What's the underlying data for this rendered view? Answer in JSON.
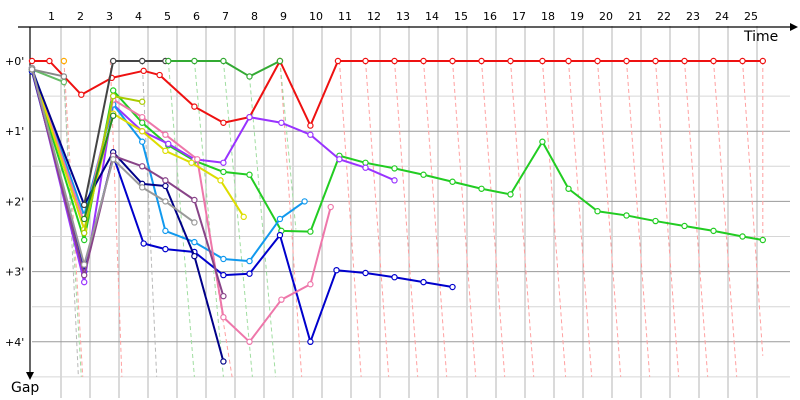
{
  "chart_data": {
    "type": "line",
    "title": "",
    "xlabel": "Time",
    "ylabel": "Gap",
    "x_ticks": [
      "1",
      "2",
      "3",
      "4",
      "5",
      "6",
      "7",
      "8",
      "9",
      "10",
      "11",
      "12",
      "13",
      "14",
      "15",
      "16",
      "17",
      "18",
      "19",
      "20",
      "21",
      "22",
      "23",
      "24",
      "25"
    ],
    "y_ticks": [
      "+0'",
      "+1'",
      "+2'",
      "+3'",
      "+4'"
    ],
    "xlim": [
      0.05,
      25.2
    ],
    "ylim": [
      0,
      4.5
    ],
    "grid": true,
    "series": [
      {
        "color": "#ee1111",
        "points": [
          [
            0,
            0
          ],
          [
            0.6,
            0
          ],
          [
            1.7,
            0.48
          ],
          [
            2.75,
            0.24
          ],
          [
            3.85,
            0.14
          ],
          [
            4.4,
            0.2
          ],
          [
            5.6,
            0.65
          ],
          [
            6.6,
            0.88
          ],
          [
            7.5,
            0.8
          ],
          [
            8.55,
            0
          ],
          [
            9.6,
            0.92
          ],
          [
            10.55,
            0
          ],
          [
            11.5,
            0
          ],
          [
            12.5,
            0
          ],
          [
            13.5,
            0
          ],
          [
            14.5,
            0
          ],
          [
            15.5,
            0
          ],
          [
            16.5,
            0
          ],
          [
            17.6,
            0
          ],
          [
            18.5,
            0
          ],
          [
            19.5,
            0
          ],
          [
            20.5,
            0
          ],
          [
            21.5,
            0
          ],
          [
            22.5,
            0
          ],
          [
            23.5,
            0
          ],
          [
            24.5,
            0
          ],
          [
            25.2,
            0
          ]
        ]
      },
      {
        "color": "#22cc22",
        "points": [
          [
            0,
            0.15
          ],
          [
            1.8,
            2.55
          ],
          [
            2.8,
            0.42
          ],
          [
            3.8,
            0.88
          ],
          [
            4.7,
            1.2
          ],
          [
            5.6,
            1.42
          ],
          [
            6.6,
            1.58
          ],
          [
            7.5,
            1.62
          ],
          [
            8.6,
            2.42
          ],
          [
            9.6,
            2.43
          ],
          [
            10.6,
            1.35
          ],
          [
            11.5,
            1.45
          ],
          [
            12.5,
            1.53
          ],
          [
            13.5,
            1.62
          ],
          [
            14.5,
            1.72
          ],
          [
            15.5,
            1.82
          ],
          [
            16.5,
            1.9
          ],
          [
            17.6,
            1.15
          ],
          [
            18.5,
            1.82
          ],
          [
            19.5,
            2.14
          ],
          [
            20.5,
            2.2
          ],
          [
            21.5,
            2.28
          ],
          [
            22.5,
            2.35
          ],
          [
            23.5,
            2.42
          ],
          [
            24.5,
            2.5
          ],
          [
            25.2,
            2.55
          ]
        ]
      },
      {
        "color": "#0000cc",
        "points": [
          [
            0,
            0.15
          ],
          [
            1.8,
            3.0
          ],
          [
            2.8,
            1.35
          ],
          [
            3.85,
            2.6
          ],
          [
            4.6,
            2.68
          ],
          [
            5.6,
            2.72
          ],
          [
            6.6,
            3.05
          ],
          [
            7.5,
            3.03
          ],
          [
            8.55,
            2.48
          ],
          [
            9.6,
            4.0
          ],
          [
            10.5,
            2.98
          ],
          [
            11.5,
            3.02
          ],
          [
            12.5,
            3.08
          ],
          [
            13.5,
            3.15
          ],
          [
            14.5,
            3.22
          ]
        ]
      },
      {
        "color": "#9933ff",
        "points": [
          [
            0,
            0.1
          ],
          [
            1.8,
            3.15
          ],
          [
            2.8,
            0.62
          ],
          [
            3.8,
            1.0
          ],
          [
            4.7,
            1.18
          ],
          [
            5.6,
            1.4
          ],
          [
            6.6,
            1.45
          ],
          [
            7.5,
            0.8
          ],
          [
            8.6,
            0.88
          ],
          [
            9.6,
            1.05
          ],
          [
            10.6,
            1.4
          ],
          [
            11.5,
            1.52
          ],
          [
            12.5,
            1.7
          ]
        ]
      },
      {
        "color": "#1199ee",
        "points": [
          [
            0,
            0.1
          ],
          [
            1.8,
            2.2
          ],
          [
            2.8,
            0.62
          ],
          [
            3.8,
            1.15
          ],
          [
            4.6,
            2.42
          ],
          [
            5.6,
            2.58
          ],
          [
            6.6,
            2.82
          ],
          [
            7.5,
            2.85
          ],
          [
            8.55,
            2.25
          ],
          [
            9.4,
            2.0
          ]
        ]
      },
      {
        "color": "#ee77aa",
        "points": [
          [
            0,
            0.1
          ],
          [
            1.8,
            2.3
          ],
          [
            2.8,
            0.55
          ],
          [
            3.8,
            0.8
          ],
          [
            4.6,
            1.05
          ],
          [
            5.7,
            1.4
          ],
          [
            6.6,
            3.65
          ],
          [
            7.5,
            4.0
          ],
          [
            8.6,
            3.4
          ],
          [
            9.6,
            3.18
          ],
          [
            10.3,
            2.08
          ]
        ]
      },
      {
        "color": "#dddd00",
        "points": [
          [
            0,
            0.12
          ],
          [
            1.8,
            2.4
          ],
          [
            2.8,
            0.75
          ],
          [
            3.8,
            1.0
          ],
          [
            4.6,
            1.28
          ],
          [
            5.5,
            1.45
          ],
          [
            6.5,
            1.7
          ],
          [
            7.3,
            2.22
          ]
        ]
      },
      {
        "color": "#000088",
        "points": [
          [
            0,
            0.12
          ],
          [
            1.8,
            2.05
          ],
          [
            2.8,
            1.3
          ],
          [
            3.8,
            1.75
          ],
          [
            4.6,
            1.78
          ],
          [
            5.6,
            2.78
          ],
          [
            6.6,
            4.28
          ]
        ]
      },
      {
        "color": "#884488",
        "points": [
          [
            0,
            0.12
          ],
          [
            1.8,
            3.05
          ],
          [
            2.8,
            1.35
          ],
          [
            3.8,
            1.5
          ],
          [
            4.6,
            1.7
          ],
          [
            5.6,
            1.98
          ],
          [
            6.6,
            3.35
          ]
        ]
      },
      {
        "color": "#999999",
        "points": [
          [
            0,
            0.1
          ],
          [
            1.8,
            2.9
          ],
          [
            2.8,
            1.4
          ],
          [
            3.8,
            1.8
          ],
          [
            4.6,
            2.0
          ],
          [
            5.6,
            2.3
          ]
        ]
      },
      {
        "color": "#66bb66",
        "points": [
          [
            0,
            0.12
          ],
          [
            1.1,
            0.3
          ]
        ]
      },
      {
        "color": "#888888",
        "points": [
          [
            0,
            0.12
          ],
          [
            1.1,
            0.22
          ]
        ]
      },
      {
        "color": "#444444",
        "points": [
          [
            1.8,
            2.05
          ],
          [
            2.8,
            0
          ],
          [
            3.8,
            0
          ],
          [
            4.6,
            0
          ]
        ]
      },
      {
        "color": "#aacc00",
        "points": [
          [
            1.8,
            2.45
          ],
          [
            2.8,
            0.5
          ],
          [
            3.8,
            0.58
          ]
        ]
      },
      {
        "color": "#228822",
        "points": [
          [
            1.8,
            2.25
          ],
          [
            2.8,
            0.78
          ]
        ]
      },
      {
        "color": "#33aa33",
        "points": [
          [
            4.7,
            0
          ],
          [
            5.6,
            0
          ],
          [
            6.6,
            0
          ],
          [
            7.5,
            0.22
          ],
          [
            8.55,
            0
          ]
        ]
      },
      {
        "color": "#ffaa00",
        "points": [
          [
            1.1,
            0
          ]
        ]
      }
    ],
    "guide_lines": [
      {
        "color": "#ffa0a0",
        "from": [
          1.1,
          0
        ],
        "to": [
          1.75,
          4.5
        ]
      },
      {
        "color": "#ffa0a0",
        "from": [
          2.7,
          0
        ],
        "to": [
          3.1,
          4.5
        ]
      },
      {
        "color": "#ffa0a0",
        "from": [
          8.55,
          0
        ],
        "to": [
          9.3,
          4.5
        ]
      },
      {
        "color": "#ffa0a0",
        "from": [
          10.6,
          0
        ],
        "to": [
          11.35,
          4.5
        ]
      },
      {
        "color": "#ffa0a0",
        "from": [
          11.5,
          0
        ],
        "to": [
          12.3,
          4.5
        ]
      },
      {
        "color": "#ffa0a0",
        "from": [
          12.5,
          0
        ],
        "to": [
          13.3,
          4.5
        ]
      },
      {
        "color": "#ffa0a0",
        "from": [
          13.5,
          0
        ],
        "to": [
          14.3,
          4.5
        ]
      },
      {
        "color": "#ffa0a0",
        "from": [
          14.5,
          0
        ],
        "to": [
          15.3,
          4.5
        ]
      },
      {
        "color": "#ffa0a0",
        "from": [
          15.5,
          0
        ],
        "to": [
          16.3,
          4.5
        ]
      },
      {
        "color": "#ffa0a0",
        "from": [
          16.5,
          0
        ],
        "to": [
          17.3,
          4.5
        ]
      },
      {
        "color": "#ffa0a0",
        "from": [
          17.6,
          0
        ],
        "to": [
          18.4,
          4.5
        ]
      },
      {
        "color": "#ffa0a0",
        "from": [
          18.5,
          0
        ],
        "to": [
          19.3,
          4.5
        ]
      },
      {
        "color": "#ffa0a0",
        "from": [
          19.5,
          0
        ],
        "to": [
          20.3,
          4.5
        ]
      },
      {
        "color": "#ffa0a0",
        "from": [
          20.5,
          0
        ],
        "to": [
          21.3,
          4.5
        ]
      },
      {
        "color": "#ffa0a0",
        "from": [
          21.5,
          0
        ],
        "to": [
          22.3,
          4.5
        ]
      },
      {
        "color": "#ffa0a0",
        "from": [
          22.5,
          0
        ],
        "to": [
          23.3,
          4.5
        ]
      },
      {
        "color": "#ffa0a0",
        "from": [
          23.5,
          0
        ],
        "to": [
          24.3,
          4.5
        ]
      },
      {
        "color": "#ffa0a0",
        "from": [
          24.5,
          0
        ],
        "to": [
          25.2,
          4.2
        ]
      },
      {
        "color": "#ffa0a0",
        "from": [
          25.2,
          0
        ],
        "to": [
          25.2,
          2.55
        ]
      },
      {
        "color": "#ffa0a0",
        "from": [
          5.7,
          1.4
        ],
        "to": [
          6.9,
          4.5
        ]
      },
      {
        "color": "#a0dda0",
        "from": [
          4.7,
          0
        ],
        "to": [
          5.6,
          4.5
        ]
      },
      {
        "color": "#a0dda0",
        "from": [
          5.6,
          0
        ],
        "to": [
          6.6,
          4.5
        ]
      },
      {
        "color": "#a0dda0",
        "from": [
          6.6,
          0
        ],
        "to": [
          7.6,
          4.5
        ]
      },
      {
        "color": "#a0dda0",
        "from": [
          7.5,
          0.22
        ],
        "to": [
          8.4,
          4.5
        ]
      },
      {
        "color": "#a0dda0",
        "from": [
          8.55,
          0
        ],
        "to": [
          9.1,
          2.4
        ]
      },
      {
        "color": "#a0dda0",
        "from": [
          1.1,
          0.3
        ],
        "to": [
          1.7,
          4.5
        ]
      },
      {
        "color": "#b8b8b8",
        "from": [
          1.1,
          0.22
        ],
        "to": [
          1.6,
          4.5
        ]
      },
      {
        "color": "#b8b8b8",
        "from": [
          3.8,
          0
        ],
        "to": [
          4.3,
          4.5
        ]
      }
    ]
  }
}
